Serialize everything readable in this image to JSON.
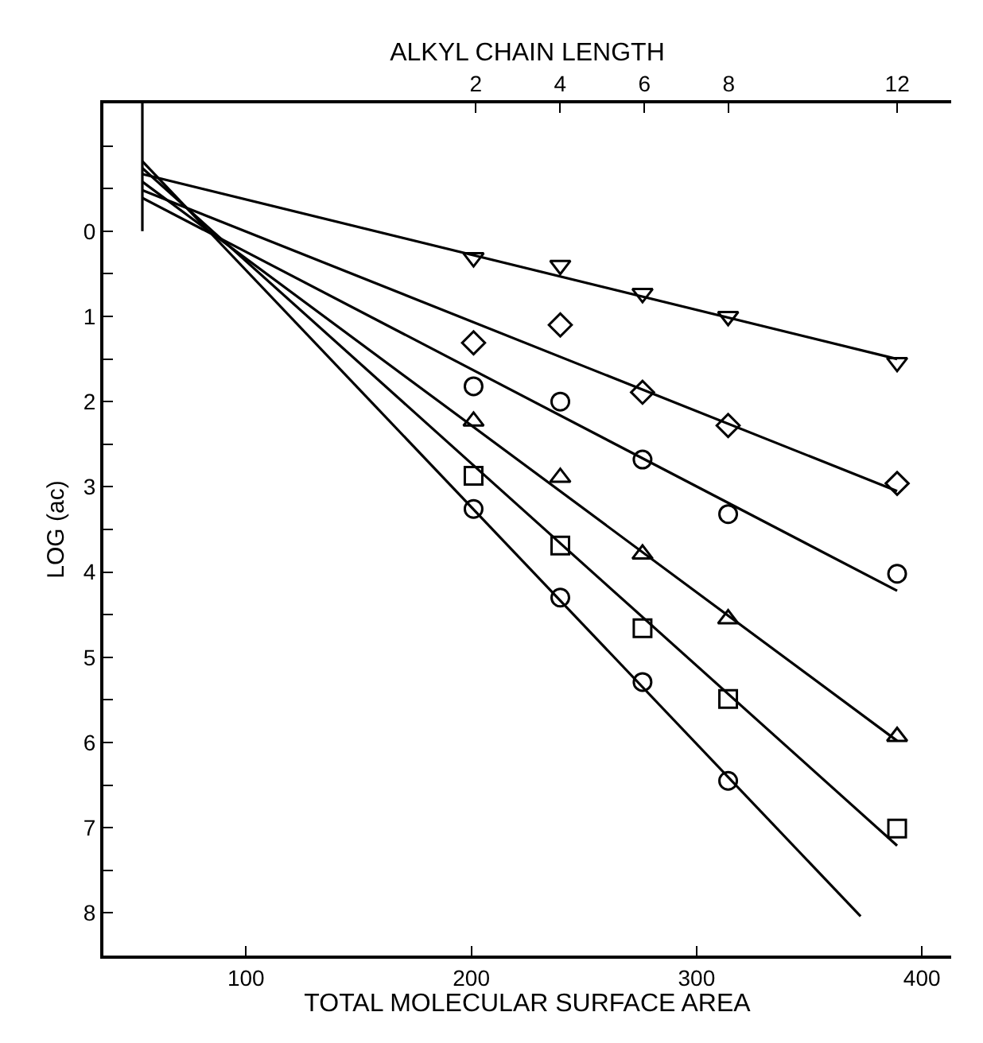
{
  "chart_data": {
    "type": "scatter",
    "xlabel": "TOTAL MOLECULAR SURFACE AREA",
    "ylabel": "LOG (ac)",
    "x2label": "ALKYL CHAIN LENGTH",
    "xlim": [
      36.7,
      413
    ],
    "xticks": [
      100,
      200,
      300,
      400
    ],
    "x2lim": [
      -6.84,
      13.28
    ],
    "x2ticks": [
      2,
      4,
      6,
      8,
      12
    ],
    "ylim": [
      8.5,
      -1.5
    ],
    "yticks": [
      {
        "value": -1,
        "label": null
      },
      {
        "value": -0.5,
        "label": null
      },
      0,
      {
        "value": 0.5,
        "label": null
      },
      1,
      {
        "value": 1.5,
        "label": null
      },
      2,
      {
        "value": 2.5,
        "label": null
      },
      3,
      {
        "value": 3.5,
        "label": null
      },
      4,
      {
        "value": 4.5,
        "label": null
      },
      5,
      {
        "value": 5.5,
        "label": null
      },
      6,
      {
        "value": 6.5,
        "label": null
      },
      7,
      {
        "value": 7.5,
        "label": null
      },
      8
    ],
    "series": [
      {
        "marker": "triangle-down",
        "color": "#000000",
        "x": [
          201,
          239.5,
          276,
          314,
          389
        ],
        "values": [
          0.31,
          0.4,
          0.73,
          1.0,
          1.54
        ]
      },
      {
        "marker": "diamond",
        "color": "#000000",
        "x": [
          201,
          239.5,
          276,
          314,
          389
        ],
        "values": [
          1.31,
          1.1,
          1.89,
          2.28,
          2.96
        ]
      },
      {
        "marker": "circle",
        "color": "#000000",
        "x": [
          201,
          239.5,
          276,
          314,
          389
        ],
        "values": [
          1.82,
          2.0,
          2.68,
          3.32,
          4.02
        ]
      },
      {
        "marker": "triangle",
        "color": "#000000",
        "x": [
          201,
          239.5,
          276,
          314,
          389
        ],
        "values": [
          2.23,
          2.89,
          3.79,
          4.55,
          5.93
        ]
      },
      {
        "marker": "square",
        "color": "#000000",
        "x": [
          201,
          239.5,
          276,
          314,
          389
        ],
        "values": [
          2.87,
          3.69,
          4.66,
          5.49,
          7.01
        ]
      },
      {
        "marker": "circle",
        "color": "#000000",
        "x": [
          201,
          239.5,
          276,
          314
        ],
        "values": [
          3.26,
          4.3,
          5.29,
          6.45
        ]
      },
      {
        "type": "line",
        "marker": "none",
        "color": "#000000",
        "x": [
          54,
          389
        ],
        "values": [
          -0.67,
          1.5
        ]
      },
      {
        "type": "line",
        "marker": "none",
        "color": "#000000",
        "x": [
          54,
          389
        ],
        "values": [
          -0.48,
          3.05
        ]
      },
      {
        "type": "line",
        "marker": "none",
        "color": "#000000",
        "x": [
          54,
          389
        ],
        "values": [
          -0.39,
          4.22
        ]
      },
      {
        "type": "line",
        "marker": "none",
        "color": "#000000",
        "x": [
          54,
          389
        ],
        "values": [
          -0.58,
          5.98
        ]
      },
      {
        "type": "line",
        "marker": "none",
        "color": "#000000",
        "x": [
          54,
          389
        ],
        "values": [
          -0.74,
          7.21
        ]
      },
      {
        "type": "line",
        "marker": "none",
        "color": "#000000",
        "x": [
          54,
          372.8
        ],
        "values": [
          -0.82,
          8.04
        ]
      },
      {
        "type": "line",
        "marker": "none",
        "color": "#000000",
        "x": [
          54,
          54
        ],
        "values": [
          -1.5,
          0
        ]
      }
    ]
  }
}
